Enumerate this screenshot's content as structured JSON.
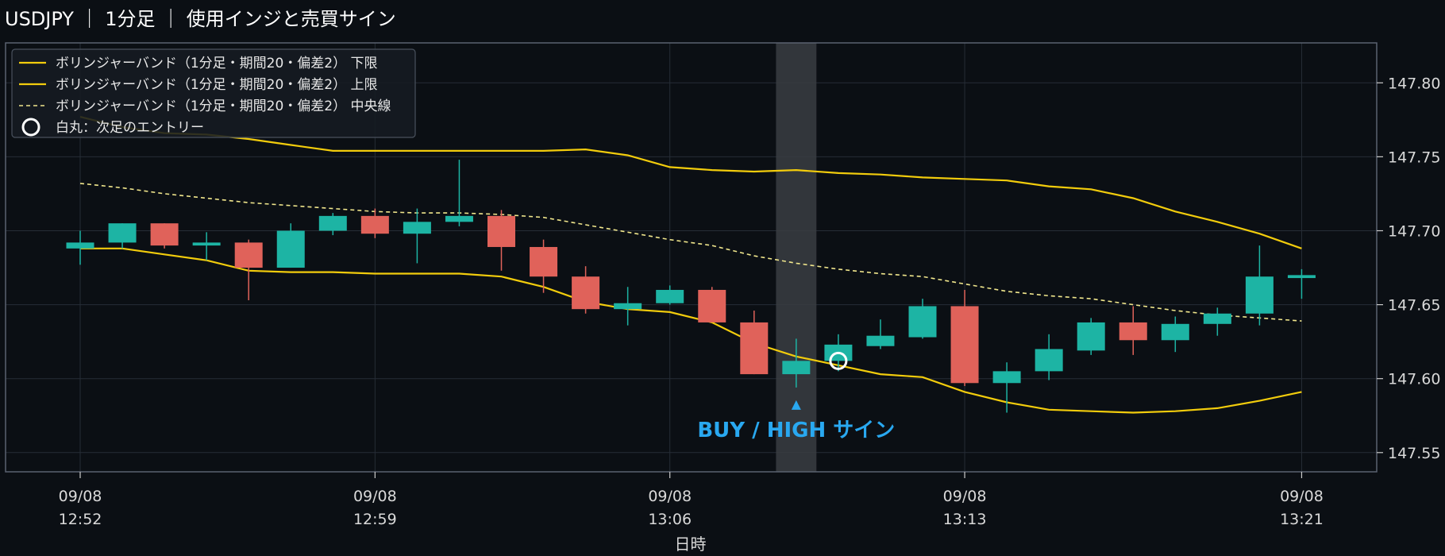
{
  "header": {
    "title": "USDJPY ｜ 1分足 ｜ 使用インジと売買サイン"
  },
  "chart_data": {
    "type": "candlestick",
    "xlabel": "日時",
    "ylim": [
      147.537,
      147.827
    ],
    "y_ticks": [
      147.55,
      147.6,
      147.65,
      147.7,
      147.75,
      147.8
    ],
    "y_tick_labels": [
      "147.55",
      "147.60",
      "147.65",
      "147.70",
      "147.75",
      "147.80"
    ],
    "grid": true,
    "x_ticks": [
      {
        "index": 0,
        "date": "09/08",
        "time": "12:52"
      },
      {
        "index": 7,
        "date": "09/08",
        "time": "12:59"
      },
      {
        "index": 14,
        "date": "09/08",
        "time": "13:06"
      },
      {
        "index": 21,
        "date": "09/08",
        "time": "13:13"
      },
      {
        "index": 29,
        "date": "09/08",
        "time": "13:21"
      }
    ],
    "candles": [
      {
        "o": 147.688,
        "h": 147.7,
        "l": 147.677,
        "c": 147.692
      },
      {
        "o": 147.692,
        "h": 147.705,
        "l": 147.688,
        "c": 147.705
      },
      {
        "o": 147.705,
        "h": 147.705,
        "l": 147.688,
        "c": 147.69
      },
      {
        "o": 147.69,
        "h": 147.699,
        "l": 147.68,
        "c": 147.692
      },
      {
        "o": 147.692,
        "h": 147.694,
        "l": 147.653,
        "c": 147.675
      },
      {
        "o": 147.675,
        "h": 147.705,
        "l": 147.675,
        "c": 147.7
      },
      {
        "o": 147.7,
        "h": 147.712,
        "l": 147.697,
        "c": 147.71
      },
      {
        "o": 147.71,
        "h": 147.715,
        "l": 147.695,
        "c": 147.698
      },
      {
        "o": 147.698,
        "h": 147.715,
        "l": 147.678,
        "c": 147.706
      },
      {
        "o": 147.706,
        "h": 147.748,
        "l": 147.703,
        "c": 147.71
      },
      {
        "o": 147.71,
        "h": 147.714,
        "l": 147.673,
        "c": 147.689
      },
      {
        "o": 147.689,
        "h": 147.694,
        "l": 147.658,
        "c": 147.669
      },
      {
        "o": 147.669,
        "h": 147.676,
        "l": 147.644,
        "c": 147.647
      },
      {
        "o": 147.647,
        "h": 147.662,
        "l": 147.636,
        "c": 147.651
      },
      {
        "o": 147.651,
        "h": 147.663,
        "l": 147.65,
        "c": 147.66
      },
      {
        "o": 147.66,
        "h": 147.662,
        "l": 147.638,
        "c": 147.638
      },
      {
        "o": 147.638,
        "h": 147.646,
        "l": 147.603,
        "c": 147.603
      },
      {
        "o": 147.603,
        "h": 147.627,
        "l": 147.594,
        "c": 147.612
      },
      {
        "o": 147.612,
        "h": 147.63,
        "l": 147.605,
        "c": 147.623
      },
      {
        "o": 147.622,
        "h": 147.64,
        "l": 147.62,
        "c": 147.629
      },
      {
        "o": 147.628,
        "h": 147.654,
        "l": 147.627,
        "c": 147.649
      },
      {
        "o": 147.649,
        "h": 147.66,
        "l": 147.595,
        "c": 147.597
      },
      {
        "o": 147.597,
        "h": 147.611,
        "l": 147.577,
        "c": 147.605
      },
      {
        "o": 147.605,
        "h": 147.63,
        "l": 147.599,
        "c": 147.62
      },
      {
        "o": 147.619,
        "h": 147.641,
        "l": 147.616,
        "c": 147.638
      },
      {
        "o": 147.638,
        "h": 147.649,
        "l": 147.616,
        "c": 147.626
      },
      {
        "o": 147.626,
        "h": 147.642,
        "l": 147.618,
        "c": 147.637
      },
      {
        "o": 147.637,
        "h": 147.648,
        "l": 147.629,
        "c": 147.644
      },
      {
        "o": 147.644,
        "h": 147.69,
        "l": 147.636,
        "c": 147.669
      },
      {
        "o": 147.668,
        "h": 147.674,
        "l": 147.654,
        "c": 147.67
      }
    ],
    "series": [
      {
        "name": "ボリンジャーバンド（1分足・期間20・偏差2） 下限",
        "style": "solid",
        "color": "#f2cc0c",
        "values": [
          147.688,
          147.688,
          147.684,
          147.68,
          147.673,
          147.672,
          147.672,
          147.671,
          147.671,
          147.671,
          147.669,
          147.662,
          147.652,
          147.647,
          147.645,
          147.638,
          147.624,
          147.615,
          147.609,
          147.603,
          147.601,
          147.591,
          147.584,
          147.579,
          147.578,
          147.577,
          147.578,
          147.58,
          147.585,
          147.591
        ]
      },
      {
        "name": "ボリンジャーバンド（1分足・期間20・偏差2） 上限",
        "style": "solid",
        "color": "#f2cc0c",
        "values": [
          147.777,
          147.77,
          147.766,
          147.765,
          147.762,
          147.758,
          147.754,
          147.754,
          147.754,
          147.754,
          147.754,
          147.754,
          147.755,
          147.751,
          147.743,
          147.741,
          147.74,
          147.741,
          147.739,
          147.738,
          147.736,
          147.735,
          147.734,
          147.73,
          147.728,
          147.722,
          147.713,
          147.706,
          147.698,
          147.688
        ]
      },
      {
        "name": "ボリンジャーバンド（1分足・期間20・偏差2） 中央線",
        "style": "dashed",
        "color": "#f0e68c",
        "values": [
          147.732,
          147.729,
          147.725,
          147.722,
          147.719,
          147.717,
          147.715,
          147.713,
          147.712,
          147.712,
          147.711,
          147.709,
          147.704,
          147.699,
          147.694,
          147.69,
          147.683,
          147.678,
          147.674,
          147.671,
          147.669,
          147.664,
          147.659,
          147.656,
          147.654,
          147.65,
          147.646,
          147.643,
          147.641,
          147.639
        ]
      }
    ],
    "entries": [
      {
        "index": 18,
        "price": 147.612
      }
    ],
    "entry_legend": "白丸：次足のエントリー",
    "signals": [
      {
        "index": 17,
        "label": "BUY / HIGH サイン",
        "color": "#29a8f0"
      }
    ],
    "legend_position": "top-left",
    "colors": {
      "background": "#0b0f14",
      "plot_border": "#5a6270",
      "grid": "#262d36",
      "up": "#1db4a4",
      "down": "#e0625a",
      "highlight": "#3a3d42",
      "text": "#d9d9d9",
      "legend_bg": "#161b22",
      "legend_border": "#4a525e"
    }
  }
}
